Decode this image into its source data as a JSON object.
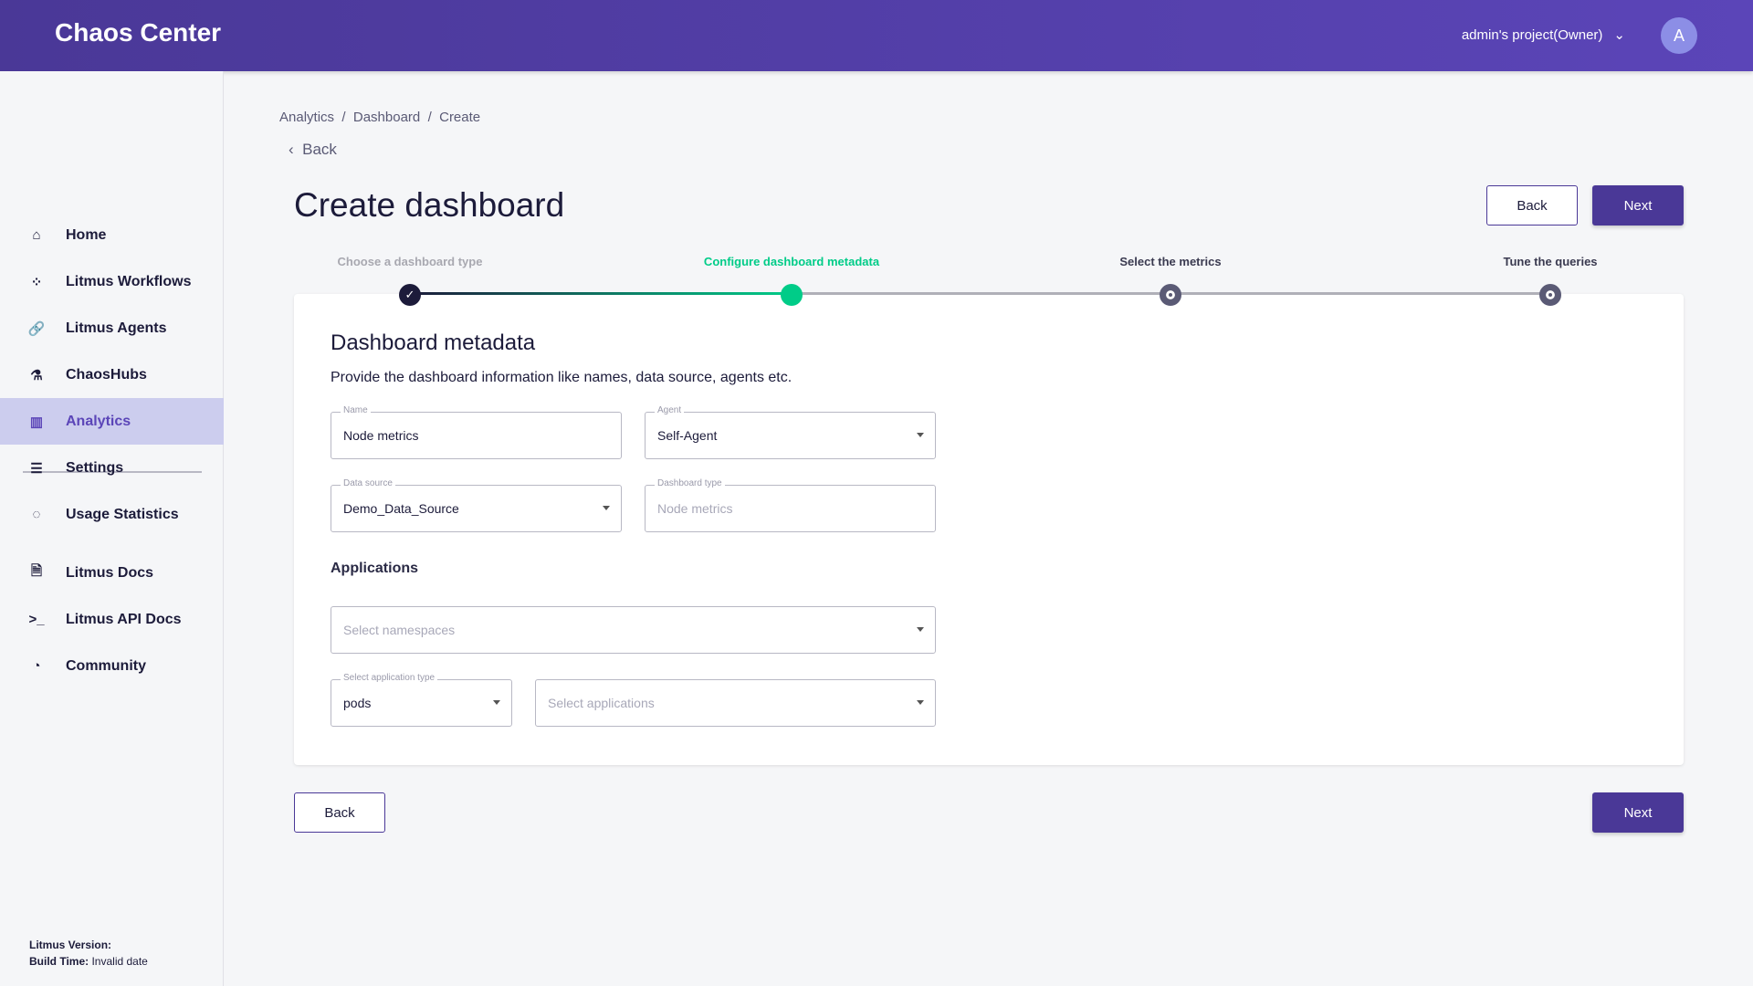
{
  "header": {
    "title": "Chaos Center",
    "project": "admin's project(Owner)",
    "avatar": "A"
  },
  "sidebar": {
    "items": [
      {
        "label": "Home",
        "icon": "home-icon",
        "glyph": "⌂"
      },
      {
        "label": "Litmus Workflows",
        "icon": "workflows-icon",
        "glyph": "⁘"
      },
      {
        "label": "Litmus Agents",
        "icon": "link-icon",
        "glyph": "🔗"
      },
      {
        "label": "ChaosHubs",
        "icon": "flask-icon",
        "glyph": "⚗"
      },
      {
        "label": "Analytics",
        "icon": "analytics-icon",
        "glyph": "▥",
        "active": true
      },
      {
        "label": "Settings",
        "icon": "settings-icon",
        "glyph": "☰"
      },
      {
        "label": "Usage Statistics",
        "icon": "usage-icon",
        "glyph": "◌"
      },
      {
        "label": "Litmus Docs",
        "icon": "docs-icon",
        "glyph": "🗎"
      },
      {
        "label": "Litmus API Docs",
        "icon": "terminal-icon",
        "glyph": ">_"
      },
      {
        "label": "Community",
        "icon": "community-icon",
        "glyph": "◔"
      }
    ],
    "version_label": "Litmus Version:",
    "build_label": "Build Time:",
    "build_value": "Invalid date"
  },
  "breadcrumb": [
    "Analytics",
    "Dashboard",
    "Create"
  ],
  "back_link": "Back",
  "page_title": "Create dashboard",
  "buttons": {
    "back": "Back",
    "next": "Next"
  },
  "stepper": {
    "steps": [
      {
        "label": "Choose a dashboard type",
        "state": "done"
      },
      {
        "label": "Configure dashboard metadata",
        "state": "active"
      },
      {
        "label": "Select the metrics",
        "state": "pending"
      },
      {
        "label": "Tune the queries",
        "state": "pending"
      }
    ]
  },
  "form": {
    "title": "Dashboard metadata",
    "description": "Provide the dashboard information like names, data source, agents etc.",
    "name": {
      "label": "Name",
      "value": "Node metrics"
    },
    "agent": {
      "label": "Agent",
      "value": "Self-Agent"
    },
    "data_source": {
      "label": "Data source",
      "value": "Demo_Data_Source"
    },
    "dashboard_type": {
      "label": "Dashboard type",
      "placeholder": "Node metrics"
    },
    "applications_title": "Applications",
    "namespaces": {
      "placeholder": "Select namespaces"
    },
    "app_type": {
      "label": "Select application type",
      "value": "pods"
    },
    "applications": {
      "placeholder": "Select applications"
    }
  },
  "colors": {
    "brand": "#4a3897",
    "active_step": "#00cc88",
    "sidebar_active": "#cccdee"
  }
}
